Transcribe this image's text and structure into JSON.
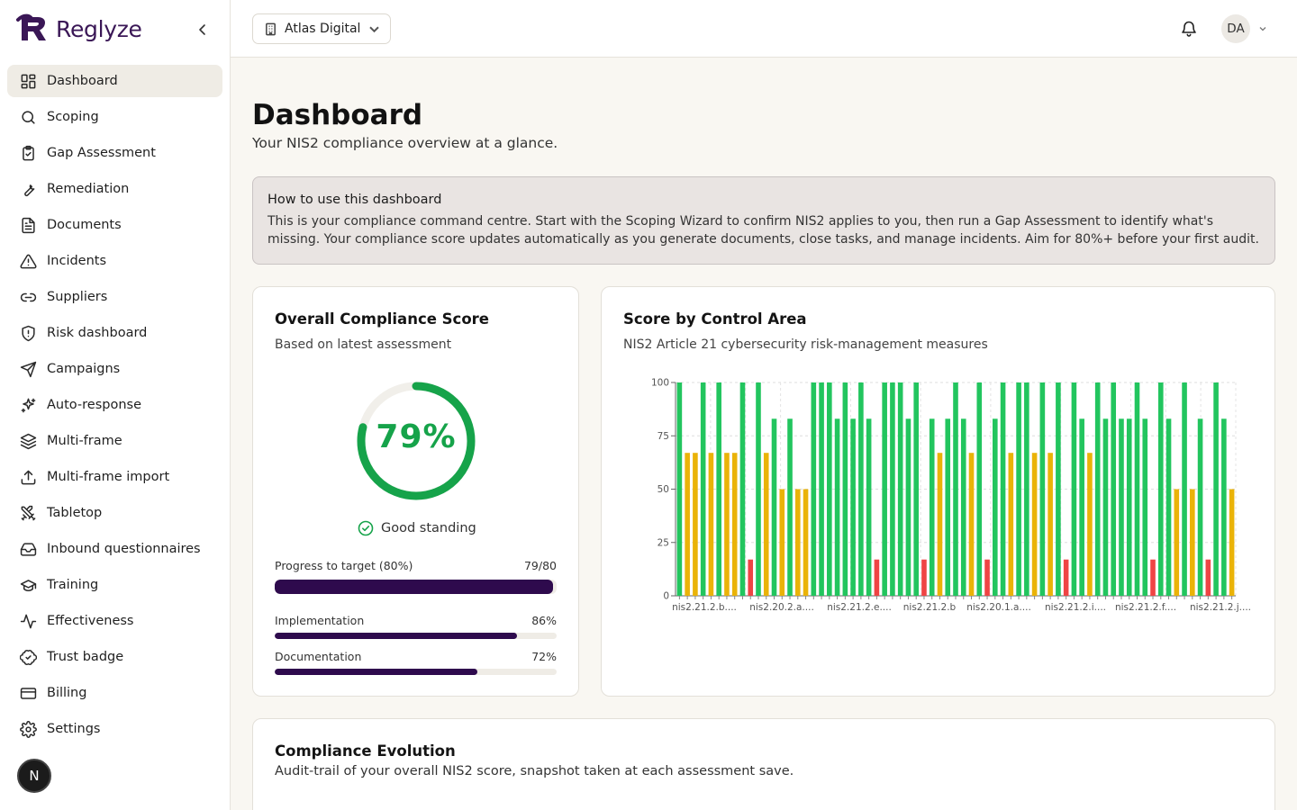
{
  "brand": {
    "name": "Reglyze"
  },
  "sidebar": {
    "items": [
      {
        "label": "Dashboard",
        "icon": "dashboard-icon",
        "active": true
      },
      {
        "label": "Scoping",
        "icon": "search-icon"
      },
      {
        "label": "Gap Assessment",
        "icon": "clipboard-check-icon"
      },
      {
        "label": "Remediation",
        "icon": "wrench-icon"
      },
      {
        "label": "Documents",
        "icon": "document-icon"
      },
      {
        "label": "Incidents",
        "icon": "alert-triangle-icon"
      },
      {
        "label": "Suppliers",
        "icon": "link-icon"
      },
      {
        "label": "Risk dashboard",
        "icon": "shield-icon"
      },
      {
        "label": "Campaigns",
        "icon": "send-icon"
      },
      {
        "label": "Auto-response",
        "icon": "sparkles-icon"
      },
      {
        "label": "Multi-frame",
        "icon": "layers-icon"
      },
      {
        "label": "Multi-frame import",
        "icon": "upload-icon"
      },
      {
        "label": "Tabletop",
        "icon": "swords-icon"
      },
      {
        "label": "Inbound questionnaires",
        "icon": "inbox-icon"
      },
      {
        "label": "Training",
        "icon": "graduation-cap-icon"
      },
      {
        "label": "Effectiveness",
        "icon": "activity-icon"
      },
      {
        "label": "Trust badge",
        "icon": "badge-check-icon"
      },
      {
        "label": "Billing",
        "icon": "credit-card-icon"
      },
      {
        "label": "Settings",
        "icon": "gear-icon"
      }
    ],
    "footer_badge": "N"
  },
  "topbar": {
    "org_name": "Atlas Digital",
    "avatar_initials": "DA"
  },
  "page": {
    "title": "Dashboard",
    "subtitle": "Your NIS2 compliance overview at a glance."
  },
  "info": {
    "title": "How to use this dashboard",
    "text": "This is your compliance command centre. Start with the Scoping Wizard to confirm NIS2 applies to you, then run a Gap Assessment to identify what's missing. Your compliance score updates automatically as you generate documents, close tasks, and manage incidents. Aim for 80%+ before your first audit."
  },
  "score_card": {
    "title": "Overall Compliance Score",
    "subtitle": "Based on latest assessment",
    "score_label": "79%",
    "score_value": 79,
    "standing": "Good standing",
    "bars": [
      {
        "label": "Progress to target (80%)",
        "value_label": "79/80",
        "fraction": 0.9875
      },
      {
        "label": "Implementation",
        "value_label": "86%",
        "fraction": 0.86
      },
      {
        "label": "Documentation",
        "value_label": "72%",
        "fraction": 0.72
      }
    ],
    "colors": {
      "good": "#16a34a",
      "bar": "#2e0a4d"
    }
  },
  "area_card": {
    "title": "Score by Control Area",
    "subtitle": "NIS2 Article 21 cybersecurity risk-management measures"
  },
  "evolution_card": {
    "title": "Compliance Evolution",
    "subtitle": "Audit-trail of your overall NIS2 score, snapshot taken at each assessment save."
  },
  "chart_data": {
    "type": "bar",
    "ylim": [
      0,
      100
    ],
    "yticks": [
      0,
      25,
      50,
      75,
      100
    ],
    "grid": true,
    "xtick_labels": [
      "nis2.21.2.b....",
      "nis2.20.2.a....",
      "nis2.21.2.e....",
      "nis2.21.2.b",
      "nis2.20.1.a....",
      "nis2.21.2.i....",
      "nis2.21.2.f....",
      "nis2.21.2.j...."
    ],
    "colors": {
      "high": "#22c55e",
      "mid": "#eab308",
      "low": "#ef4444"
    },
    "values": [
      100,
      67,
      67,
      100,
      67,
      100,
      67,
      67,
      100,
      17,
      100,
      67,
      83,
      50,
      83,
      50,
      50,
      100,
      100,
      100,
      83,
      100,
      83,
      100,
      83,
      17,
      100,
      100,
      100,
      83,
      100,
      17,
      83,
      67,
      83,
      100,
      83,
      67,
      100,
      17,
      83,
      100,
      67,
      100,
      100,
      67,
      100,
      67,
      100,
      17,
      100,
      83,
      67,
      100,
      83,
      100,
      83,
      83,
      100,
      83,
      17,
      100,
      83,
      50,
      100,
      50,
      83,
      17,
      100,
      83,
      50
    ]
  }
}
